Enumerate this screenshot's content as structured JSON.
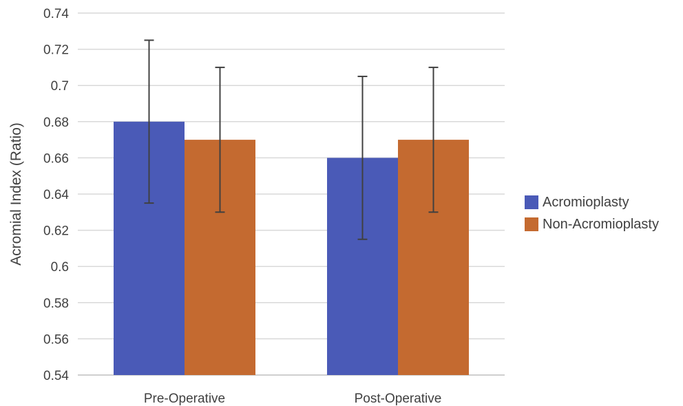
{
  "chart_data": {
    "type": "bar",
    "title": "",
    "xlabel": "",
    "ylabel": "Acromial Index (Ratio)",
    "categories": [
      "Pre-Operative",
      "Post-Operative"
    ],
    "ylim": [
      0.54,
      0.74
    ],
    "yticks": [
      0.54,
      0.56,
      0.58,
      0.6,
      0.62,
      0.64,
      0.66,
      0.68,
      0.7,
      0.72,
      0.74
    ],
    "grid": true,
    "legend_position": "right",
    "series": [
      {
        "name": "Acromioplasty",
        "color": "#4a5ab7",
        "values": [
          0.68,
          0.66
        ],
        "error": [
          0.045,
          0.045
        ]
      },
      {
        "name": "Non-Acromioplasty",
        "color": "#c46a30",
        "values": [
          0.67,
          0.67
        ],
        "error": [
          0.04,
          0.04
        ]
      }
    ]
  }
}
